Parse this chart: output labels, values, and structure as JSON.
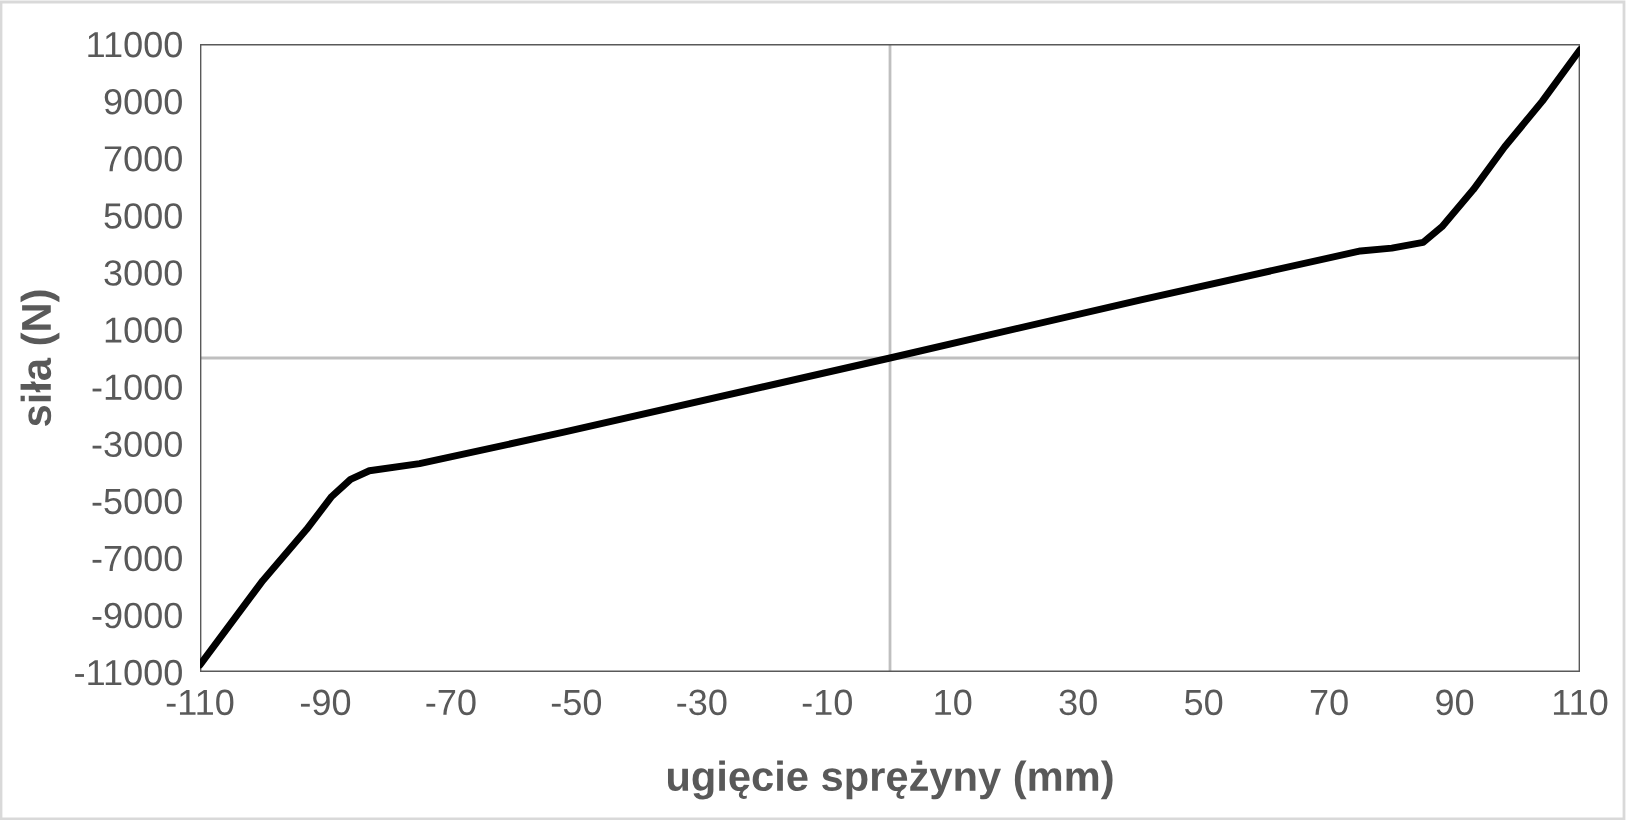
{
  "chart_data": {
    "type": "line",
    "xlabel": "ugięcie sprężyny (mm)",
    "ylabel": "siła (N)",
    "series": [
      {
        "color": "#000000",
        "x": [
          -110,
          -100,
          -93,
          -89,
          -86,
          -83,
          -75,
          -52,
          0,
          40,
          75,
          80,
          85,
          88,
          93,
          98,
          104,
          110
        ],
        "values": [
          -10750,
          -7800,
          -6000,
          -4850,
          -4250,
          -3950,
          -3700,
          -2600,
          0,
          2040,
          3750,
          3850,
          4050,
          4600,
          5900,
          7400,
          9000,
          10800
        ]
      }
    ],
    "xlim": [
      -110,
      110
    ],
    "xticks": [
      -110,
      -90,
      -70,
      -50,
      -30,
      -10,
      10,
      30,
      50,
      70,
      90,
      110
    ],
    "ylim": [
      -11000,
      11000
    ],
    "yticks": [
      -11000,
      -9000,
      -7000,
      -5000,
      -3000,
      -1000,
      1000,
      3000,
      5000,
      7000,
      9000,
      11000
    ],
    "grid": false,
    "legend": false,
    "marker": "none",
    "line_style": "solid"
  }
}
